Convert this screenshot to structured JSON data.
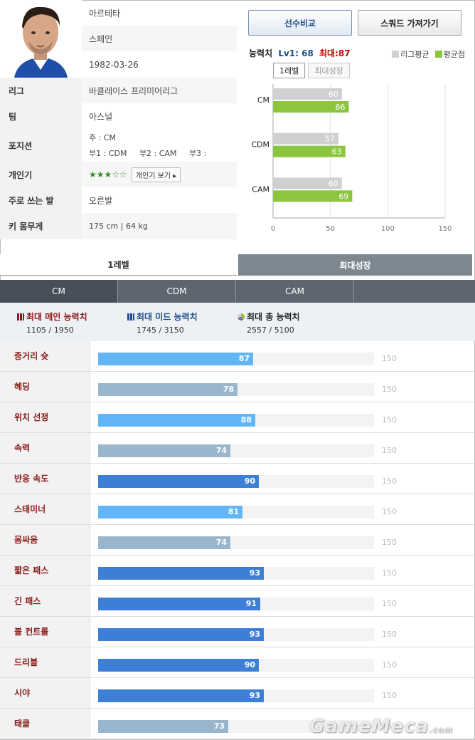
{
  "player": {
    "name": "아르테타",
    "nation": "스페인",
    "birth": "1982-03-26",
    "rows": [
      {
        "label": "리그",
        "value": "바클레이스 프리미어리그"
      },
      {
        "label": "팀",
        "value": "아스널"
      },
      {
        "label": "포지션",
        "value": "주 : CM",
        "value2": "부1 : CDM     부2 : CAM     부3 :"
      },
      {
        "label": "개인기",
        "value": "★★★☆☆",
        "button": "개인기 보기 ▸"
      },
      {
        "label": "주로 쓰는 발",
        "value": "오른발"
      },
      {
        "label": "키 몸무게",
        "value": "175 cm | 64 kg"
      }
    ]
  },
  "header": {
    "compare_button": "선수비교",
    "squad_button": "스쿼드 가져가기",
    "ability_label": "능력치",
    "lv_label": "Lv1: 68",
    "max_label": "최대:87",
    "legend_avg": "리그평균",
    "legend_mine": "평균점",
    "toggle_lv1": "1레벨",
    "toggle_max": "최대성장"
  },
  "colors": {
    "avg": "#d0d0d0",
    "mine": "#8cc63f"
  },
  "chart_data": {
    "type": "bar",
    "orientation": "horizontal",
    "categories": [
      "CM",
      "CDM",
      "CAM"
    ],
    "series": [
      {
        "name": "리그평균",
        "values": [
          60,
          57,
          60
        ]
      },
      {
        "name": "평균점",
        "values": [
          66,
          63,
          69
        ]
      }
    ],
    "xlim": [
      0,
      150
    ],
    "xticks": [
      "0",
      "50",
      "100",
      "150"
    ]
  },
  "tabs": {
    "level1": "1레벨",
    "max_growth": "최대성장"
  },
  "position_tabs": [
    "CM",
    "CDM",
    "CAM",
    ""
  ],
  "summary": [
    {
      "title": "최대 메인 능력치",
      "value": "1105 / 1950"
    },
    {
      "title": "최대 미드 능력치",
      "value": "1745 / 3150"
    },
    {
      "title": "최대 총 능력치",
      "value": "2557 / 5100"
    }
  ],
  "stats": [
    {
      "label": "중거리 슛",
      "value": 87,
      "max": "150",
      "color": "#62b6f5"
    },
    {
      "label": "헤딩",
      "value": 78,
      "max": "150",
      "color": "#9ab6cc"
    },
    {
      "label": "위치 선정",
      "value": 88,
      "max": "150",
      "color": "#62b6f5"
    },
    {
      "label": "속력",
      "value": 74,
      "max": "150",
      "color": "#9ab6cc"
    },
    {
      "label": "반응 속도",
      "value": 90,
      "max": "150",
      "color": "#3d7fd6"
    },
    {
      "label": "스태미너",
      "value": 81,
      "max": "150",
      "color": "#62b6f5"
    },
    {
      "label": "몸싸움",
      "value": 74,
      "max": "150",
      "color": "#9ab6cc"
    },
    {
      "label": "짧은 패스",
      "value": 93,
      "max": "150",
      "color": "#3d7fd6"
    },
    {
      "label": "긴 패스",
      "value": 91,
      "max": "150",
      "color": "#3d7fd6"
    },
    {
      "label": "볼 컨트롤",
      "value": 93,
      "max": "150",
      "color": "#3d7fd6"
    },
    {
      "label": "드리블",
      "value": 90,
      "max": "150",
      "color": "#3d7fd6"
    },
    {
      "label": "시야",
      "value": 93,
      "max": "150",
      "color": "#3d7fd6"
    },
    {
      "label": "태클",
      "value": 73,
      "max": "150",
      "color": "#9ab6cc"
    }
  ],
  "watermark": {
    "brand": "GameMeca",
    "suffix": ".com"
  }
}
